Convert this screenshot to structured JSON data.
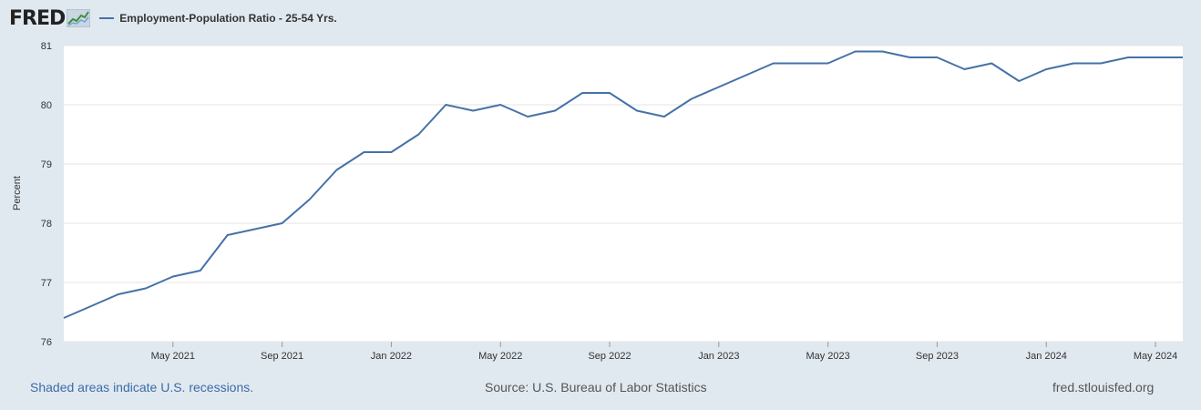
{
  "header": {
    "logo_text": "FRED",
    "logo_icon": "trend-graph-icon"
  },
  "colors": {
    "background": "#e1e9f0",
    "plot_background": "#ffffff",
    "series": "#4572a7",
    "grid": "#e6e6e6"
  },
  "chart_data": {
    "type": "line",
    "title": "",
    "xlabel": "",
    "ylabel": "Percent",
    "ylim": [
      76,
      81
    ],
    "yticks": [
      76,
      77,
      78,
      79,
      80,
      81
    ],
    "grid": true,
    "legend_placement": "top-left",
    "x_start": "2021-01",
    "xticks": [
      {
        "label": "May 2021",
        "month_index": 4
      },
      {
        "label": "Sep 2021",
        "month_index": 8
      },
      {
        "label": "Jan 2022",
        "month_index": 12
      },
      {
        "label": "May 2022",
        "month_index": 16
      },
      {
        "label": "Sep 2022",
        "month_index": 20
      },
      {
        "label": "Jan 2023",
        "month_index": 24
      },
      {
        "label": "May 2023",
        "month_index": 28
      },
      {
        "label": "Sep 2023",
        "month_index": 32
      },
      {
        "label": "Jan 2024",
        "month_index": 36
      },
      {
        "label": "May 2024",
        "month_index": 40
      }
    ],
    "series": [
      {
        "name": "Employment-Population Ratio - 25-54 Yrs.",
        "values": [
          76.4,
          76.6,
          76.8,
          76.9,
          77.1,
          77.2,
          77.8,
          77.9,
          78.0,
          78.4,
          78.9,
          79.2,
          79.2,
          79.5,
          80.0,
          79.9,
          80.0,
          79.8,
          79.9,
          80.2,
          80.2,
          79.9,
          79.8,
          80.1,
          80.3,
          80.5,
          80.7,
          80.7,
          80.7,
          80.9,
          80.9,
          80.8,
          80.8,
          80.6,
          80.7,
          80.4,
          80.6,
          80.7,
          80.7,
          80.8,
          80.8,
          80.8
        ]
      }
    ]
  },
  "footer": {
    "recessions_note": "Shaded areas indicate U.S. recessions.",
    "source": "Source: U.S. Bureau of Labor Statistics",
    "site": "fred.stlouisfed.org"
  }
}
